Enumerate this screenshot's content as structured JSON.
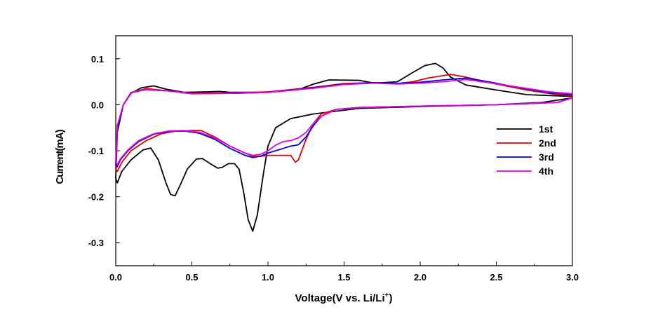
{
  "chart_data": {
    "type": "line",
    "title": "",
    "xlabel": "Voltage(V vs. Li/Li",
    "xlabel_sup": "+",
    "xlabel_close": ")",
    "ylabel": "Current(mA)",
    "xlim": [
      0.0,
      3.0
    ],
    "ylim": [
      -0.35,
      0.15
    ],
    "x_ticks": [
      0.0,
      0.5,
      1.0,
      1.5,
      2.0,
      2.5,
      3.0
    ],
    "x_tick_labels": [
      "0.0",
      "0.5",
      "1.0",
      "1.5",
      "2.0",
      "2.5",
      "3.0"
    ],
    "y_ticks": [
      0.1,
      0.0,
      -0.1,
      -0.2,
      -0.3
    ],
    "y_tick_labels": [
      "0.1",
      "0.0",
      "-0.1",
      "-0.2",
      "-0.3"
    ],
    "grid": false,
    "legend_position": "right",
    "series": [
      {
        "name": "1st",
        "color": "#000000",
        "points": [
          [
            3.0,
            0.015
          ],
          [
            2.8,
            0.005
          ],
          [
            2.5,
            0.0
          ],
          [
            2.0,
            -0.004
          ],
          [
            1.6,
            -0.008
          ],
          [
            1.3,
            -0.02
          ],
          [
            1.15,
            -0.03
          ],
          [
            1.05,
            -0.05
          ],
          [
            1.0,
            -0.09
          ],
          [
            0.97,
            -0.15
          ],
          [
            0.93,
            -0.24
          ],
          [
            0.9,
            -0.275
          ],
          [
            0.87,
            -0.25
          ],
          [
            0.84,
            -0.19
          ],
          [
            0.81,
            -0.14
          ],
          [
            0.78,
            -0.128
          ],
          [
            0.74,
            -0.128
          ],
          [
            0.7,
            -0.136
          ],
          [
            0.67,
            -0.138
          ],
          [
            0.63,
            -0.13
          ],
          [
            0.57,
            -0.117
          ],
          [
            0.53,
            -0.118
          ],
          [
            0.47,
            -0.14
          ],
          [
            0.43,
            -0.17
          ],
          [
            0.39,
            -0.198
          ],
          [
            0.36,
            -0.195
          ],
          [
            0.33,
            -0.17
          ],
          [
            0.28,
            -0.12
          ],
          [
            0.23,
            -0.094
          ],
          [
            0.18,
            -0.098
          ],
          [
            0.1,
            -0.12
          ],
          [
            0.04,
            -0.145
          ],
          [
            0.01,
            -0.17
          ],
          [
            0.0,
            -0.16
          ],
          [
            0.01,
            -0.06
          ],
          [
            0.05,
            0.0
          ],
          [
            0.1,
            0.025
          ],
          [
            0.17,
            0.037
          ],
          [
            0.25,
            0.041
          ],
          [
            0.33,
            0.034
          ],
          [
            0.45,
            0.027
          ],
          [
            0.6,
            0.028
          ],
          [
            0.68,
            0.029
          ],
          [
            0.75,
            0.027
          ],
          [
            1.0,
            0.027
          ],
          [
            1.2,
            0.033
          ],
          [
            1.3,
            0.045
          ],
          [
            1.4,
            0.054
          ],
          [
            1.6,
            0.053
          ],
          [
            1.7,
            0.047
          ],
          [
            1.85,
            0.05
          ],
          [
            1.95,
            0.07
          ],
          [
            2.03,
            0.085
          ],
          [
            2.1,
            0.09
          ],
          [
            2.15,
            0.08
          ],
          [
            2.2,
            0.06
          ],
          [
            2.3,
            0.043
          ],
          [
            2.5,
            0.032
          ],
          [
            2.7,
            0.022
          ],
          [
            3.0,
            0.018
          ]
        ]
      },
      {
        "name": "2nd",
        "color": "#e00000",
        "points": [
          [
            3.0,
            0.015
          ],
          [
            2.9,
            0.005
          ],
          [
            2.5,
            0.0
          ],
          [
            2.0,
            -0.003
          ],
          [
            1.6,
            -0.006
          ],
          [
            1.45,
            -0.01
          ],
          [
            1.35,
            -0.02
          ],
          [
            1.3,
            -0.04
          ],
          [
            1.25,
            -0.075
          ],
          [
            1.2,
            -0.12
          ],
          [
            1.18,
            -0.125
          ],
          [
            1.15,
            -0.11
          ],
          [
            1.1,
            -0.11
          ],
          [
            1.05,
            -0.11
          ],
          [
            1.0,
            -0.11
          ],
          [
            0.95,
            -0.112
          ],
          [
            0.9,
            -0.112
          ],
          [
            0.85,
            -0.105
          ],
          [
            0.75,
            -0.09
          ],
          [
            0.65,
            -0.07
          ],
          [
            0.56,
            -0.056
          ],
          [
            0.5,
            -0.056
          ],
          [
            0.4,
            -0.057
          ],
          [
            0.3,
            -0.063
          ],
          [
            0.2,
            -0.078
          ],
          [
            0.1,
            -0.1
          ],
          [
            0.04,
            -0.125
          ],
          [
            0.01,
            -0.145
          ],
          [
            0.0,
            -0.14
          ],
          [
            0.01,
            -0.05
          ],
          [
            0.05,
            0.0
          ],
          [
            0.1,
            0.026
          ],
          [
            0.2,
            0.035
          ],
          [
            0.35,
            0.03
          ],
          [
            0.5,
            0.025
          ],
          [
            0.8,
            0.026
          ],
          [
            1.0,
            0.028
          ],
          [
            1.3,
            0.038
          ],
          [
            1.5,
            0.046
          ],
          [
            1.7,
            0.048
          ],
          [
            1.85,
            0.046
          ],
          [
            1.95,
            0.05
          ],
          [
            2.05,
            0.058
          ],
          [
            2.2,
            0.066
          ],
          [
            2.3,
            0.06
          ],
          [
            2.5,
            0.045
          ],
          [
            2.7,
            0.032
          ],
          [
            2.9,
            0.022
          ],
          [
            3.0,
            0.02
          ]
        ]
      },
      {
        "name": "3rd",
        "color": "#0000d0",
        "points": [
          [
            3.0,
            0.015
          ],
          [
            2.9,
            0.005
          ],
          [
            2.5,
            0.0
          ],
          [
            2.0,
            -0.003
          ],
          [
            1.6,
            -0.006
          ],
          [
            1.45,
            -0.01
          ],
          [
            1.35,
            -0.025
          ],
          [
            1.3,
            -0.045
          ],
          [
            1.25,
            -0.07
          ],
          [
            1.2,
            -0.087
          ],
          [
            1.15,
            -0.09
          ],
          [
            1.1,
            -0.095
          ],
          [
            1.05,
            -0.1
          ],
          [
            1.0,
            -0.105
          ],
          [
            0.95,
            -0.112
          ],
          [
            0.9,
            -0.115
          ],
          [
            0.85,
            -0.11
          ],
          [
            0.75,
            -0.095
          ],
          [
            0.65,
            -0.075
          ],
          [
            0.55,
            -0.062
          ],
          [
            0.45,
            -0.057
          ],
          [
            0.35,
            -0.058
          ],
          [
            0.25,
            -0.064
          ],
          [
            0.15,
            -0.08
          ],
          [
            0.08,
            -0.1
          ],
          [
            0.03,
            -0.12
          ],
          [
            0.01,
            -0.135
          ],
          [
            0.0,
            -0.13
          ],
          [
            0.01,
            -0.05
          ],
          [
            0.05,
            0.0
          ],
          [
            0.1,
            0.026
          ],
          [
            0.2,
            0.033
          ],
          [
            0.35,
            0.03
          ],
          [
            0.5,
            0.024
          ],
          [
            0.8,
            0.025
          ],
          [
            1.0,
            0.027
          ],
          [
            1.3,
            0.037
          ],
          [
            1.5,
            0.045
          ],
          [
            1.7,
            0.048
          ],
          [
            1.85,
            0.046
          ],
          [
            2.0,
            0.049
          ],
          [
            2.15,
            0.054
          ],
          [
            2.3,
            0.058
          ],
          [
            2.45,
            0.05
          ],
          [
            2.65,
            0.037
          ],
          [
            2.85,
            0.026
          ],
          [
            3.0,
            0.022
          ]
        ]
      },
      {
        "name": "4th",
        "color": "#e000e0",
        "points": [
          [
            3.0,
            0.015
          ],
          [
            2.9,
            0.005
          ],
          [
            2.5,
            0.0
          ],
          [
            2.0,
            -0.003
          ],
          [
            1.6,
            -0.006
          ],
          [
            1.45,
            -0.01
          ],
          [
            1.35,
            -0.025
          ],
          [
            1.3,
            -0.04
          ],
          [
            1.25,
            -0.06
          ],
          [
            1.2,
            -0.072
          ],
          [
            1.15,
            -0.078
          ],
          [
            1.1,
            -0.08
          ],
          [
            1.05,
            -0.088
          ],
          [
            1.0,
            -0.1
          ],
          [
            0.95,
            -0.108
          ],
          [
            0.9,
            -0.11
          ],
          [
            0.85,
            -0.105
          ],
          [
            0.75,
            -0.09
          ],
          [
            0.65,
            -0.072
          ],
          [
            0.55,
            -0.06
          ],
          [
            0.45,
            -0.056
          ],
          [
            0.35,
            -0.057
          ],
          [
            0.25,
            -0.063
          ],
          [
            0.15,
            -0.078
          ],
          [
            0.08,
            -0.098
          ],
          [
            0.03,
            -0.118
          ],
          [
            0.01,
            -0.13
          ],
          [
            0.0,
            -0.125
          ],
          [
            0.01,
            -0.045
          ],
          [
            0.05,
            0.0
          ],
          [
            0.1,
            0.027
          ],
          [
            0.2,
            0.033
          ],
          [
            0.35,
            0.03
          ],
          [
            0.5,
            0.024
          ],
          [
            0.8,
            0.025
          ],
          [
            1.0,
            0.027
          ],
          [
            1.3,
            0.036
          ],
          [
            1.5,
            0.044
          ],
          [
            1.7,
            0.047
          ],
          [
            1.85,
            0.045
          ],
          [
            2.0,
            0.047
          ],
          [
            2.15,
            0.05
          ],
          [
            2.3,
            0.055
          ],
          [
            2.45,
            0.048
          ],
          [
            2.65,
            0.038
          ],
          [
            2.85,
            0.028
          ],
          [
            3.0,
            0.024
          ]
        ]
      }
    ]
  }
}
